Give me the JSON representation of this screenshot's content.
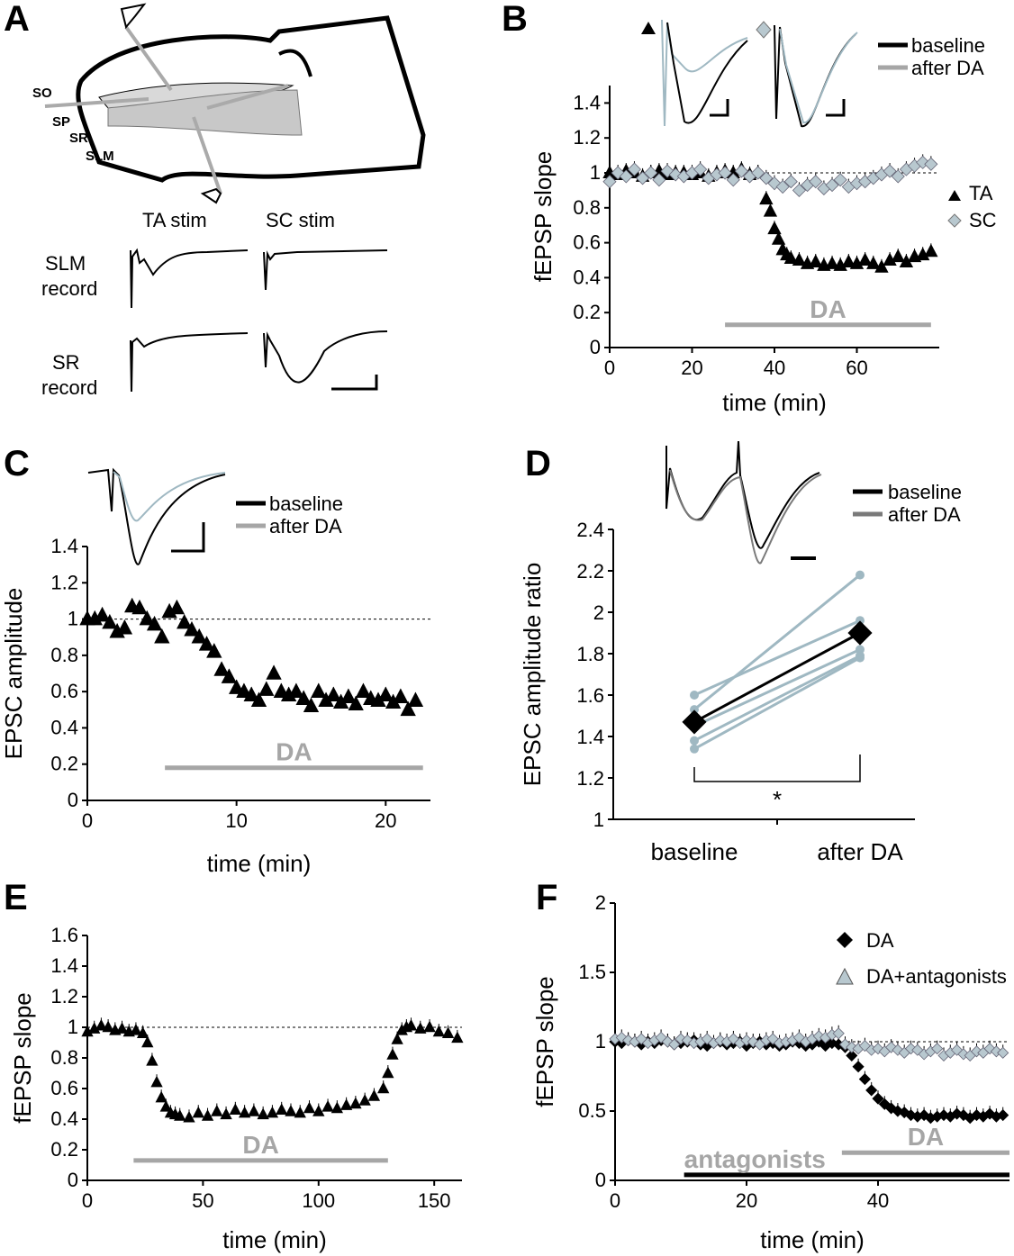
{
  "colors": {
    "black": "#000000",
    "gray": "#a6a6a6",
    "lightblue": "#9fb8c2",
    "tracegray": "#7a7a7a"
  },
  "panels": {
    "A": {
      "letter": "A",
      "layers": [
        "SO",
        "SP",
        "SR",
        "SLM"
      ],
      "stim_labels": [
        "TA stim",
        "SC stim"
      ],
      "record_labels": [
        [
          "SLM",
          "record"
        ],
        [
          "SR",
          "record"
        ]
      ]
    },
    "B": {
      "letter": "B"
    },
    "C": {
      "letter": "C"
    },
    "D": {
      "letter": "D"
    },
    "E": {
      "letter": "E"
    },
    "F": {
      "letter": "F"
    }
  },
  "chart_data": [
    {
      "id": "B",
      "type": "scatter",
      "ylabel": "fEPSP slope",
      "xlabel": "time (min)",
      "xlim": [
        0,
        80
      ],
      "ylim": [
        0,
        1.5
      ],
      "xticks": [
        0,
        20,
        40,
        60
      ],
      "yticks": [
        0,
        0.2,
        0.4,
        0.6,
        0.8,
        1,
        1.2,
        1.4
      ],
      "ytick_labels": [
        "0",
        "0.2",
        "0.4",
        "0.6",
        "0.8",
        "1",
        "1.2",
        "1.4"
      ],
      "bar": {
        "label": "DA",
        "x0": 28,
        "x1": 78,
        "y": 0.13
      },
      "legend": [
        "baseline",
        "after DA"
      ],
      "marker_legend": [
        "TA",
        "SC"
      ],
      "series": [
        {
          "name": "TA",
          "marker": "triangle",
          "color": "#000000",
          "x": [
            0,
            2,
            4,
            6,
            8,
            10,
            12,
            14,
            16,
            18,
            20,
            22,
            24,
            26,
            28,
            30,
            32,
            34,
            36,
            38,
            39,
            40,
            41,
            42,
            43,
            44,
            46,
            48,
            50,
            52,
            54,
            56,
            58,
            60,
            62,
            64,
            66,
            68,
            70,
            72,
            74,
            76,
            78
          ],
          "y": [
            1,
            0.99,
            1.01,
            1,
            0.98,
            1,
            1.01,
            0.99,
            1,
            1,
            0.99,
            1,
            0.98,
            1,
            1.01,
            1,
            1.02,
            0.99,
            1,
            0.85,
            0.78,
            0.68,
            0.62,
            0.56,
            0.53,
            0.51,
            0.5,
            0.48,
            0.49,
            0.47,
            0.48,
            0.47,
            0.49,
            0.48,
            0.5,
            0.48,
            0.46,
            0.5,
            0.52,
            0.49,
            0.52,
            0.53,
            0.55
          ]
        },
        {
          "name": "SC",
          "marker": "diamond",
          "color": "#b8c8cf",
          "x": [
            0,
            2,
            4,
            6,
            8,
            10,
            12,
            14,
            16,
            18,
            20,
            22,
            24,
            26,
            28,
            30,
            32,
            34,
            36,
            38,
            40,
            42,
            44,
            46,
            48,
            50,
            52,
            54,
            56,
            58,
            60,
            62,
            64,
            66,
            68,
            70,
            72,
            74,
            76,
            78
          ],
          "y": [
            0.95,
            1,
            0.98,
            1.02,
            0.97,
            1,
            0.96,
            1.01,
            0.99,
            0.98,
            1,
            1.02,
            0.97,
            0.99,
            1,
            0.96,
            1.01,
            0.98,
            1,
            0.97,
            0.94,
            0.92,
            0.95,
            0.9,
            0.93,
            0.95,
            0.91,
            0.93,
            0.96,
            0.92,
            0.94,
            0.95,
            0.97,
            0.99,
            1.01,
            0.98,
            1.02,
            1.04,
            1.06,
            1.05
          ]
        }
      ]
    },
    {
      "id": "C",
      "type": "scatter",
      "ylabel": "EPSC amplitude",
      "xlabel": "time (min)",
      "xlim": [
        0,
        23
      ],
      "ylim": [
        0,
        1.4
      ],
      "xticks": [
        0,
        10,
        20
      ],
      "yticks": [
        0,
        0.2,
        0.4,
        0.6,
        0.8,
        1,
        1.2,
        1.4
      ],
      "ytick_labels": [
        "0",
        "0.2",
        "0.4",
        "0.6",
        "0.8",
        "1",
        "1.2",
        "1.4"
      ],
      "bar": {
        "label": "DA",
        "x0": 5.2,
        "x1": 22.5,
        "y": 0.18
      },
      "legend": [
        "baseline",
        "after DA"
      ],
      "series": [
        {
          "name": "EPSC",
          "marker": "triangle",
          "color": "#000000",
          "x": [
            0,
            0.5,
            1,
            1.5,
            2,
            2.5,
            3,
            3.5,
            4,
            4.5,
            5,
            5.5,
            6,
            6.5,
            7,
            7.5,
            8,
            8.5,
            9,
            9.5,
            10,
            10.5,
            11,
            11.5,
            12,
            12.5,
            13,
            13.5,
            14,
            14.5,
            15,
            15.5,
            16,
            16.5,
            17,
            17.5,
            18,
            18.5,
            19,
            19.5,
            20,
            20.5,
            21,
            21.5,
            22
          ],
          "y": [
            1,
            1,
            1.02,
            0.98,
            0.93,
            0.95,
            1.07,
            1.06,
            1,
            0.97,
            0.9,
            1.04,
            1.06,
            0.98,
            0.94,
            0.9,
            0.86,
            0.82,
            0.72,
            0.68,
            0.62,
            0.6,
            0.58,
            0.55,
            0.61,
            0.7,
            0.6,
            0.58,
            0.6,
            0.56,
            0.52,
            0.6,
            0.55,
            0.58,
            0.54,
            0.57,
            0.53,
            0.6,
            0.56,
            0.55,
            0.58,
            0.54,
            0.57,
            0.5,
            0.55
          ]
        }
      ]
    },
    {
      "id": "D",
      "type": "line",
      "ylabel": "EPSC amplitude ratio",
      "categories": [
        "baseline",
        "after DA"
      ],
      "ylim": [
        1,
        2.4
      ],
      "yticks": [
        1,
        1.2,
        1.4,
        1.6,
        1.8,
        2,
        2.2,
        2.4
      ],
      "ytick_labels": [
        "1",
        "1.2",
        "1.4",
        "1.6",
        "1.8",
        "2",
        "2.2",
        "2.4"
      ],
      "legend": [
        "baseline",
        "after DA"
      ],
      "significance": "*",
      "mean": {
        "values": [
          1.47,
          1.9
        ]
      },
      "individual": [
        {
          "values": [
            1.6,
            1.96
          ]
        },
        {
          "values": [
            1.53,
            2.18
          ]
        },
        {
          "values": [
            1.45,
            1.82
          ]
        },
        {
          "values": [
            1.38,
            1.79
          ]
        },
        {
          "values": [
            1.34,
            1.78
          ]
        }
      ]
    },
    {
      "id": "E",
      "type": "scatter",
      "ylabel": "fEPSP slope",
      "xlabel": "time (min)",
      "xlim": [
        0,
        162
      ],
      "ylim": [
        0,
        1.6
      ],
      "xticks": [
        0,
        50,
        100,
        150
      ],
      "yticks": [
        0,
        0.2,
        0.4,
        0.6,
        0.8,
        1,
        1.2,
        1.4,
        1.6
      ],
      "ytick_labels": [
        "0",
        "0.2",
        "0.4",
        "0.6",
        "0.8",
        "1",
        "1.2",
        "1.4",
        "1.6"
      ],
      "bar": {
        "label": "DA",
        "x0": 20,
        "x1": 130,
        "y": 0.13
      },
      "series": [
        {
          "name": "fEPSP",
          "marker": "triangle",
          "color": "#000000",
          "x": [
            0,
            3,
            6,
            9,
            12,
            15,
            18,
            21,
            24,
            26,
            28,
            30,
            32,
            34,
            36,
            38,
            40,
            44,
            48,
            52,
            56,
            60,
            64,
            68,
            72,
            76,
            80,
            84,
            88,
            92,
            96,
            100,
            104,
            108,
            112,
            116,
            120,
            124,
            128,
            130,
            132,
            134,
            136,
            138,
            140,
            144,
            148,
            152,
            156,
            160
          ],
          "y": [
            0.97,
            0.99,
            1.01,
            1,
            0.98,
            0.99,
            0.97,
            0.98,
            0.96,
            0.9,
            0.78,
            0.64,
            0.54,
            0.48,
            0.44,
            0.43,
            0.42,
            0.41,
            0.44,
            0.42,
            0.45,
            0.43,
            0.46,
            0.44,
            0.45,
            0.43,
            0.44,
            0.46,
            0.45,
            0.44,
            0.47,
            0.45,
            0.48,
            0.47,
            0.49,
            0.5,
            0.52,
            0.55,
            0.6,
            0.7,
            0.82,
            0.92,
            0.98,
            1.0,
            1.01,
            0.99,
            1,
            0.97,
            0.96,
            0.93
          ]
        }
      ]
    },
    {
      "id": "F",
      "type": "scatter",
      "ylabel": "fEPSP slope",
      "xlabel": "time (min)",
      "xlim": [
        0,
        60
      ],
      "ylim": [
        0,
        2
      ],
      "xticks": [
        0,
        20,
        40
      ],
      "yticks": [
        0,
        0.5,
        1,
        1.5,
        2
      ],
      "ytick_labels": [
        "0",
        "0.5",
        "1",
        "1.5",
        "2"
      ],
      "bars": [
        {
          "label": "antagonists",
          "x0": 10.5,
          "x1": 60,
          "y": 0.04,
          "color": "#000000"
        },
        {
          "label": "DA",
          "x0": 34.5,
          "x1": 60,
          "y": 0.2,
          "color": "#a6a6a6"
        }
      ],
      "legend": [
        "DA",
        "DA+antagonists"
      ],
      "series": [
        {
          "name": "DA",
          "marker": "diamond",
          "color": "#000000",
          "x": [
            0,
            1,
            2,
            3,
            4,
            5,
            6,
            7,
            8,
            9,
            10,
            11,
            12,
            13,
            14,
            15,
            16,
            17,
            18,
            19,
            20,
            21,
            22,
            23,
            24,
            25,
            26,
            27,
            28,
            29,
            30,
            31,
            32,
            33,
            34,
            35,
            36,
            37,
            38,
            39,
            40,
            41,
            42,
            43,
            44,
            45,
            46,
            47,
            48,
            49,
            50,
            51,
            52,
            53,
            54,
            55,
            56,
            57,
            58,
            59
          ],
          "y": [
            1,
            0.99,
            1.01,
            1,
            0.98,
            1,
            0.99,
            1.01,
            1,
            0.98,
            0.99,
            1,
            1.01,
            0.98,
            0.97,
            0.99,
            1,
            0.98,
            0.99,
            1,
            0.97,
            0.99,
            1,
            0.98,
            0.99,
            0.97,
            0.98,
            1,
            0.99,
            0.97,
            0.98,
            1,
            0.97,
            0.99,
            0.98,
            0.96,
            0.9,
            0.82,
            0.73,
            0.65,
            0.59,
            0.55,
            0.52,
            0.5,
            0.49,
            0.47,
            0.46,
            0.47,
            0.45,
            0.46,
            0.47,
            0.46,
            0.48,
            0.47,
            0.45,
            0.47,
            0.46,
            0.48,
            0.46,
            0.47
          ]
        },
        {
          "name": "DA+antagonists",
          "marker": "diamond",
          "color": "#b8c8cf",
          "x": [
            0,
            1,
            2,
            3,
            4,
            5,
            6,
            7,
            8,
            9,
            10,
            11,
            12,
            13,
            14,
            15,
            16,
            17,
            18,
            19,
            20,
            21,
            22,
            23,
            24,
            25,
            26,
            27,
            28,
            29,
            30,
            31,
            32,
            33,
            34,
            35,
            36,
            37,
            38,
            39,
            40,
            41,
            42,
            43,
            44,
            45,
            46,
            47,
            48,
            49,
            50,
            51,
            52,
            53,
            54,
            55,
            56,
            57,
            58,
            59
          ],
          "y": [
            1.02,
            1.03,
            1.01,
            1,
            1.02,
            0.99,
            1.01,
            1.03,
            1,
            0.98,
            1.02,
            1.01,
            0.99,
            1,
            1.02,
            0.99,
            1.01,
            1,
            1.02,
            0.99,
            1.01,
            1,
            0.98,
            1.01,
            1.02,
            0.99,
            1,
            1.01,
            1.03,
            1,
            1.02,
            1.04,
            1.03,
            1.05,
            1.06,
            0.98,
            0.96,
            0.95,
            0.97,
            0.94,
            0.95,
            0.93,
            0.96,
            0.94,
            0.92,
            0.95,
            0.94,
            0.91,
            0.93,
            0.95,
            0.9,
            0.92,
            0.94,
            0.91,
            0.9,
            0.93,
            0.92,
            0.95,
            0.93,
            0.92
          ]
        }
      ]
    }
  ]
}
